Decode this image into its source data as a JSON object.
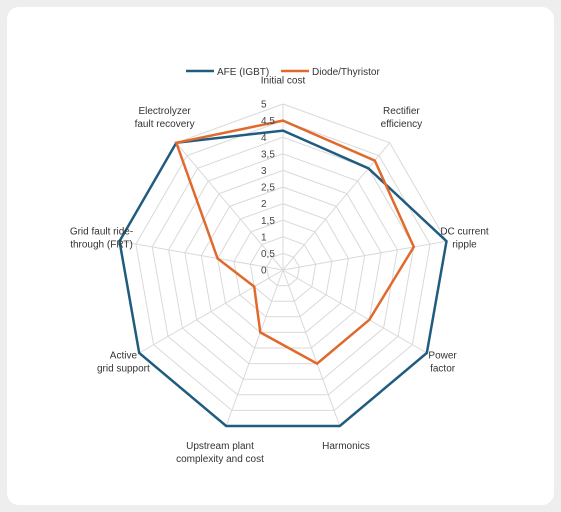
{
  "chart_data": {
    "type": "radar",
    "title": "",
    "axes": [
      [
        "Initial cost"
      ],
      [
        "Rectifier",
        "efficiency"
      ],
      [
        "DC current",
        "ripple"
      ],
      [
        "Power",
        "factor"
      ],
      [
        "Harmonics"
      ],
      [
        "Upstream plant",
        "complexity and cost"
      ],
      [
        "Active",
        "grid support"
      ],
      [
        "Grid fault ride-",
        "through (FRT)"
      ],
      [
        "Electrolyzer",
        "fault recovery"
      ]
    ],
    "rlim": [
      0,
      5
    ],
    "ticks": [
      "0",
      "0,5",
      "1",
      "1,5",
      "2",
      "2,5",
      "3",
      "3,5",
      "4",
      "4,5",
      "5"
    ],
    "grid": true,
    "legend_position": "top",
    "series": [
      {
        "name": "AFE (IGBT)",
        "color": "#1f5c7f",
        "values": [
          4.2,
          4.0,
          5,
          5,
          5,
          5,
          5,
          5,
          5
        ]
      },
      {
        "name": "Diode/Thyristor",
        "color": "#e06a2d",
        "values": [
          4.5,
          4.3,
          4.0,
          3.0,
          3.0,
          2.0,
          1.0,
          2.0,
          5
        ]
      }
    ]
  }
}
